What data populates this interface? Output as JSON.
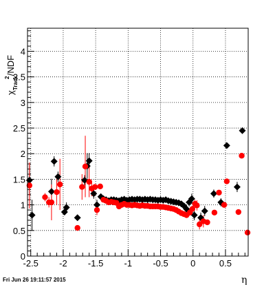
{
  "timestamp": "Fri Jun 26 19:11:57 2015",
  "chart_data": {
    "type": "scatter",
    "title": "",
    "xlabel": "η",
    "ylabel": {
      "chi": "χ",
      "superscript": "2",
      "subscript": "Track",
      "suffix": "/NDF"
    },
    "xlim": [
      -2.55,
      0.85
    ],
    "ylim": [
      0,
      4.45
    ],
    "grid": true,
    "x_ticks": [
      -2.5,
      -2,
      -1.5,
      -1,
      -0.5,
      0,
      0.5
    ],
    "x_tick_labels": [
      "-2.5",
      "-2",
      "-1.5",
      "-1",
      "-0.5",
      "0",
      "0.5"
    ],
    "y_ticks": [
      0,
      0.5,
      1,
      1.5,
      2,
      2.5,
      3,
      3.5,
      4
    ],
    "y_tick_labels": [
      "0",
      "0.5",
      "1",
      "1.5",
      "2",
      "2.5",
      "3",
      "3.5",
      "4"
    ],
    "colors": {
      "black_series": "#000000",
      "red_series": "#ff0000"
    },
    "series": [
      {
        "marker": "diamond",
        "color": "#000000",
        "points": [
          [
            -2.52,
            1.48,
            0.3
          ],
          [
            -2.48,
            0.8,
            0.3
          ],
          [
            -2.18,
            1.26,
            0.25
          ],
          [
            -2.14,
            1.85,
            0.1
          ],
          [
            -2.08,
            1.55,
            0.1
          ],
          [
            -1.98,
            0.86,
            0.05
          ],
          [
            -1.95,
            0.95,
            0.1
          ],
          [
            -1.78,
            0.75,
            0.05
          ],
          [
            -1.67,
            1.48,
            0.1
          ],
          [
            -1.63,
            1.76,
            0.25
          ],
          [
            -1.6,
            1.86,
            0.15
          ],
          [
            -1.53,
            1.22,
            0.1
          ],
          [
            -1.48,
            1.0,
            0.1
          ],
          [
            -1.42,
            1.16,
            0.06
          ],
          [
            -1.38,
            1.12,
            0.05
          ],
          [
            -1.34,
            1.1,
            0.04
          ],
          [
            -1.3,
            1.08,
            0.04
          ],
          [
            -1.26,
            1.1,
            0.04
          ],
          [
            -1.22,
            1.1,
            0.04
          ],
          [
            -1.18,
            1.09,
            0.03
          ],
          [
            -1.14,
            1.08,
            0.03
          ],
          [
            -1.1,
            1.1,
            0.03
          ],
          [
            -1.06,
            1.11,
            0.03
          ],
          [
            -1.02,
            1.09,
            0.03
          ],
          [
            -0.98,
            1.1,
            0.03
          ],
          [
            -0.94,
            1.11,
            0.03
          ],
          [
            -0.9,
            1.1,
            0.03
          ],
          [
            -0.86,
            1.11,
            0.03
          ],
          [
            -0.82,
            1.11,
            0.03
          ],
          [
            -0.78,
            1.1,
            0.03
          ],
          [
            -0.74,
            1.11,
            0.03
          ],
          [
            -0.7,
            1.1,
            0.03
          ],
          [
            -0.66,
            1.11,
            0.03
          ],
          [
            -0.62,
            1.1,
            0.03
          ],
          [
            -0.58,
            1.1,
            0.03
          ],
          [
            -0.54,
            1.09,
            0.03
          ],
          [
            -0.5,
            1.1,
            0.03
          ],
          [
            -0.46,
            1.09,
            0.03
          ],
          [
            -0.42,
            1.1,
            0.03
          ],
          [
            -0.38,
            1.08,
            0.03
          ],
          [
            -0.34,
            1.07,
            0.03
          ],
          [
            -0.3,
            1.06,
            0.03
          ],
          [
            -0.26,
            1.05,
            0.03
          ],
          [
            -0.22,
            1.04,
            0.03
          ],
          [
            -0.18,
            1.02,
            0.04
          ],
          [
            -0.14,
            0.98,
            0.04
          ],
          [
            -0.1,
            0.92,
            0.05
          ],
          [
            -0.06,
            1.05,
            0.08
          ],
          [
            -0.02,
            1.12,
            0.1
          ],
          [
            0.02,
            0.8,
            0.1
          ],
          [
            0.12,
            0.75,
            0.1
          ],
          [
            0.18,
            0.88,
            0.1
          ],
          [
            0.32,
            1.22,
            0.08
          ],
          [
            0.43,
            1.05,
            0.08
          ],
          [
            0.52,
            2.16,
            0.05
          ],
          [
            0.68,
            1.35,
            0.1
          ],
          [
            0.76,
            2.45,
            0.05
          ]
        ]
      },
      {
        "marker": "circle",
        "color": "#ff0000",
        "points": [
          [
            -2.52,
            1.38,
            0.45
          ],
          [
            -2.28,
            1.15,
            0.08
          ],
          [
            -2.22,
            1.05,
            0.1
          ],
          [
            -2.18,
            1.05,
            0.35
          ],
          [
            -2.1,
            1.25,
            0.25
          ],
          [
            -2.05,
            1.4,
            0.5
          ],
          [
            -1.78,
            0.55,
            0.05
          ],
          [
            -1.71,
            1.35,
            0.25
          ],
          [
            -1.66,
            1.75,
            0.6
          ],
          [
            -1.6,
            1.45,
            0.3
          ],
          [
            -1.56,
            1.32,
            0.15
          ],
          [
            -1.51,
            1.35,
            0.05
          ],
          [
            -1.48,
            0.9,
            0.1
          ],
          [
            -1.43,
            1.36,
            0.05
          ],
          [
            -1.38,
            1.1,
            0.05
          ],
          [
            -1.34,
            1.08,
            0.04
          ],
          [
            -1.3,
            1.05,
            0.04
          ],
          [
            -1.26,
            1.06,
            0.04
          ],
          [
            -1.22,
            1.05,
            0.04
          ],
          [
            -1.18,
            1.04,
            0.03
          ],
          [
            -1.14,
            0.97,
            0.03
          ],
          [
            -1.1,
            1.0,
            0.03
          ],
          [
            -1.06,
            1.02,
            0.03
          ],
          [
            -1.02,
            1.0,
            0.03
          ],
          [
            -0.98,
            1.0,
            0.03
          ],
          [
            -0.94,
            0.99,
            0.03
          ],
          [
            -0.9,
            1.0,
            0.03
          ],
          [
            -0.86,
            0.99,
            0.03
          ],
          [
            -0.82,
            0.98,
            0.03
          ],
          [
            -0.78,
            0.99,
            0.03
          ],
          [
            -0.74,
            0.98,
            0.03
          ],
          [
            -0.7,
            0.98,
            0.03
          ],
          [
            -0.66,
            0.97,
            0.03
          ],
          [
            -0.62,
            0.97,
            0.03
          ],
          [
            -0.58,
            0.97,
            0.03
          ],
          [
            -0.54,
            0.97,
            0.03
          ],
          [
            -0.5,
            0.96,
            0.03
          ],
          [
            -0.46,
            0.96,
            0.03
          ],
          [
            -0.42,
            0.95,
            0.03
          ],
          [
            -0.38,
            0.94,
            0.03
          ],
          [
            -0.34,
            0.93,
            0.03
          ],
          [
            -0.3,
            0.92,
            0.03
          ],
          [
            -0.26,
            0.9,
            0.03
          ],
          [
            -0.22,
            0.87,
            0.04
          ],
          [
            -0.18,
            0.84,
            0.04
          ],
          [
            -0.14,
            0.82,
            0.05
          ],
          [
            -0.1,
            0.8,
            0.05
          ],
          [
            -0.05,
            0.85,
            0.06
          ],
          [
            -0.01,
            0.92,
            0.06
          ],
          [
            0.03,
            1.02,
            0.08
          ],
          [
            0.06,
            0.99,
            0.1
          ],
          [
            0.1,
            0.62,
            0.1
          ],
          [
            0.16,
            0.68,
            0.12
          ],
          [
            0.22,
            0.66,
            0.05
          ],
          [
            0.33,
            0.85,
            0.05
          ],
          [
            0.4,
            1.24,
            0.05
          ],
          [
            0.48,
            1.0,
            0.05
          ],
          [
            0.52,
            1.46,
            0.05
          ],
          [
            0.7,
            0.86,
            0.05
          ],
          [
            0.75,
            1.96,
            0.05
          ],
          [
            0.84,
            0.46,
            0.05
          ]
        ]
      }
    ]
  }
}
